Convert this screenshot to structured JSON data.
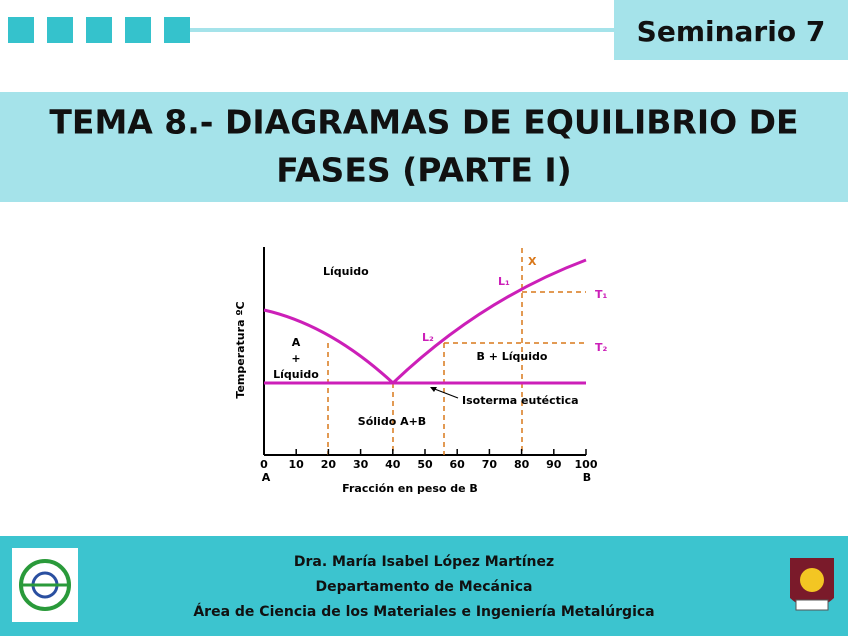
{
  "header": {
    "label": "Seminario 7"
  },
  "title": {
    "lines": [
      "TEMA 8.- DIAGRAMAS DE EQUILIBRIO DE",
      "FASES (PARTE I)"
    ]
  },
  "figure": {
    "y_label": "Temperatura ºC",
    "x_label": "Fracción en peso de B",
    "x_ticks": [
      0,
      10,
      20,
      30,
      40,
      50,
      60,
      70,
      80,
      90,
      100
    ],
    "end_labels": [
      "A",
      "B"
    ],
    "regions": [
      "Líquido",
      "A",
      "+",
      "Líquido",
      "B + Líquido",
      "Sólido A+B"
    ],
    "annotations": [
      "X",
      "L₁",
      "L₂",
      "T₁",
      "T₂",
      "Isoterma eutéctica"
    ]
  },
  "footer": {
    "lines": [
      "Dra. María Isabel López Martínez",
      "Departamento de Mecánica",
      "Área de Ciencia de los Materiales e Ingeniería Metalúrgica"
    ]
  }
}
